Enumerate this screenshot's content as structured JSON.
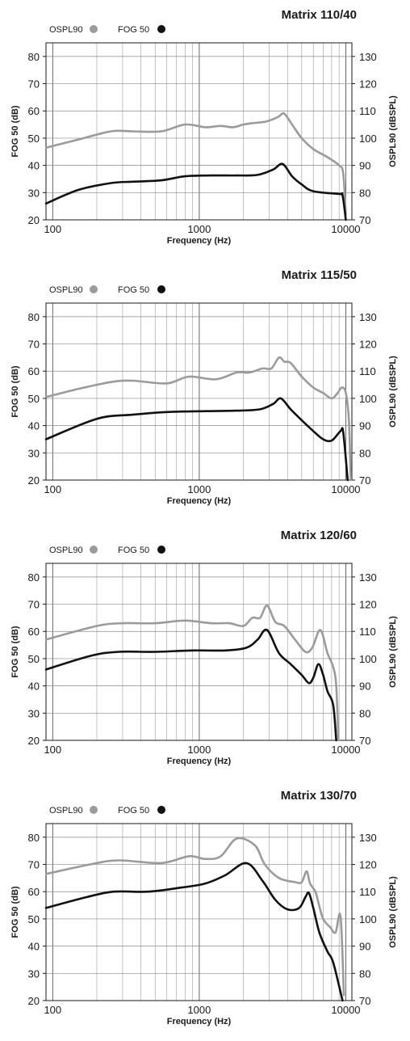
{
  "chart_data": [
    {
      "type": "line",
      "title": "Matrix 110/40",
      "xlabel": "Frequency (Hz)",
      "ylabel": "FOG 50 (dB)",
      "y2label": "OSPL90 (dBSPL)",
      "xscale": "log",
      "xlim": [
        90,
        11000
      ],
      "ylim": [
        20,
        85
      ],
      "y2lim": [
        70,
        135
      ],
      "xticks": [
        100,
        1000,
        10000
      ],
      "yticks": [
        20,
        30,
        40,
        50,
        60,
        70,
        80
      ],
      "y2ticks": [
        70,
        80,
        90,
        100,
        110,
        120,
        130
      ],
      "grid": true,
      "legend": [
        "OSPL90",
        "FOG 50"
      ],
      "colors": {
        "OSPL90": "#9b9b9b",
        "FOG 50": "#111111"
      },
      "series": [
        {
          "name": "OSPL90",
          "axis": "right",
          "points": [
            [
              90,
              96.5
            ],
            [
              150,
              99.5
            ],
            [
              250,
              102.5
            ],
            [
              350,
              102.5
            ],
            [
              550,
              102.5
            ],
            [
              800,
              105
            ],
            [
              1100,
              104
            ],
            [
              1400,
              104.5
            ],
            [
              1700,
              104
            ],
            [
              2000,
              105
            ],
            [
              2300,
              105.5
            ],
            [
              2800,
              106
            ],
            [
              3200,
              107
            ],
            [
              3500,
              108
            ],
            [
              3800,
              109
            ],
            [
              4300,
              105
            ],
            [
              5000,
              100
            ],
            [
              6000,
              96
            ],
            [
              7500,
              93
            ],
            [
              9000,
              90
            ],
            [
              9600,
              87
            ],
            [
              10000,
              72
            ]
          ]
        },
        {
          "name": "FOG 50",
          "axis": "left",
          "points": [
            [
              90,
              26
            ],
            [
              150,
              31
            ],
            [
              250,
              33.5
            ],
            [
              350,
              34
            ],
            [
              550,
              34.5
            ],
            [
              800,
              36
            ],
            [
              1200,
              36.3
            ],
            [
              1800,
              36.3
            ],
            [
              2500,
              36.5
            ],
            [
              3200,
              38.5
            ],
            [
              3700,
              40.5
            ],
            [
              4300,
              36
            ],
            [
              5000,
              33
            ],
            [
              6000,
              30.5
            ],
            [
              9000,
              29.5
            ],
            [
              9500,
              29
            ],
            [
              10000,
              20
            ]
          ]
        }
      ]
    },
    {
      "type": "line",
      "title": "Matrix 115/50",
      "xlabel": "Frequency (Hz)",
      "ylabel": "FOG 50 (dB)",
      "y2label": "OSPL90 (dBSPL)",
      "xscale": "log",
      "xlim": [
        90,
        11000
      ],
      "ylim": [
        20,
        85
      ],
      "y2lim": [
        70,
        135
      ],
      "xticks": [
        100,
        1000,
        10000
      ],
      "yticks": [
        20,
        30,
        40,
        50,
        60,
        70,
        80
      ],
      "y2ticks": [
        70,
        80,
        90,
        100,
        110,
        120,
        130
      ],
      "grid": true,
      "legend": [
        "OSPL90",
        "FOG 50"
      ],
      "colors": {
        "OSPL90": "#9b9b9b",
        "FOG 50": "#111111"
      },
      "series": [
        {
          "name": "OSPL90",
          "axis": "right",
          "points": [
            [
              90,
              100.5
            ],
            [
              150,
              103.5
            ],
            [
              250,
              106
            ],
            [
              350,
              106.5
            ],
            [
              600,
              105.5
            ],
            [
              850,
              108
            ],
            [
              1300,
              107
            ],
            [
              1800,
              109.5
            ],
            [
              2200,
              109.5
            ],
            [
              2700,
              111
            ],
            [
              3100,
              111
            ],
            [
              3500,
              115
            ],
            [
              3800,
              113.5
            ],
            [
              4200,
              113
            ],
            [
              5000,
              108
            ],
            [
              6000,
              104
            ],
            [
              7000,
              102
            ],
            [
              8000,
              100
            ],
            [
              8800,
              102
            ],
            [
              9400,
              104
            ],
            [
              10000,
              102
            ],
            [
              10500,
              92
            ],
            [
              10800,
              70
            ]
          ]
        },
        {
          "name": "FOG 50",
          "axis": "left",
          "points": [
            [
              90,
              35
            ],
            [
              200,
              42.5
            ],
            [
              350,
              44
            ],
            [
              600,
              45
            ],
            [
              1000,
              45.3
            ],
            [
              1800,
              45.5
            ],
            [
              2600,
              46
            ],
            [
              3200,
              48
            ],
            [
              3600,
              50
            ],
            [
              4200,
              46
            ],
            [
              5000,
              42
            ],
            [
              6000,
              38
            ],
            [
              7000,
              35
            ],
            [
              8000,
              34.5
            ],
            [
              9200,
              38
            ],
            [
              9600,
              37.5
            ],
            [
              10300,
              20
            ]
          ]
        }
      ]
    },
    {
      "type": "line",
      "title": "Matrix 120/60",
      "xlabel": "Frequency (Hz)",
      "ylabel": "FOG 50 (dB)",
      "y2label": "OSPL90 (dBSPL)",
      "xscale": "log",
      "xlim": [
        90,
        11000
      ],
      "ylim": [
        20,
        85
      ],
      "y2lim": [
        70,
        135
      ],
      "xticks": [
        100,
        1000,
        10000
      ],
      "yticks": [
        20,
        30,
        40,
        50,
        60,
        70,
        80
      ],
      "y2ticks": [
        70,
        80,
        90,
        100,
        110,
        120,
        130
      ],
      "grid": true,
      "legend": [
        "OSPL90",
        "FOG 50"
      ],
      "colors": {
        "OSPL90": "#9b9b9b",
        "FOG 50": "#111111"
      },
      "series": [
        {
          "name": "OSPL90",
          "axis": "right",
          "points": [
            [
              90,
              107
            ],
            [
              200,
              112
            ],
            [
              300,
              113
            ],
            [
              500,
              113
            ],
            [
              800,
              114
            ],
            [
              1200,
              113
            ],
            [
              1600,
              113
            ],
            [
              2000,
              112
            ],
            [
              2300,
              115
            ],
            [
              2600,
              115
            ],
            [
              2900,
              119.5
            ],
            [
              3300,
              113.5
            ],
            [
              3800,
              112
            ],
            [
              4500,
              107
            ],
            [
              5300,
              102.5
            ],
            [
              5900,
              104
            ],
            [
              6700,
              110.5
            ],
            [
              7500,
              102
            ],
            [
              8200,
              97
            ],
            [
              8600,
              90
            ],
            [
              8900,
              70
            ]
          ]
        },
        {
          "name": "FOG 50",
          "axis": "left",
          "points": [
            [
              90,
              46
            ],
            [
              180,
              51
            ],
            [
              280,
              52.5
            ],
            [
              500,
              52.5
            ],
            [
              900,
              53
            ],
            [
              1500,
              53
            ],
            [
              2100,
              54
            ],
            [
              2500,
              57
            ],
            [
              2900,
              60.5
            ],
            [
              3500,
              52
            ],
            [
              4200,
              48
            ],
            [
              5000,
              44
            ],
            [
              5600,
              41
            ],
            [
              6000,
              43
            ],
            [
              6500,
              48
            ],
            [
              7000,
              44
            ],
            [
              7500,
              38
            ],
            [
              8200,
              33
            ],
            [
              8600,
              20
            ]
          ]
        }
      ]
    },
    {
      "type": "line",
      "title": "Matrix 130/70",
      "xlabel": "Frequency (Hz)",
      "ylabel": "FOG 50 (dB)",
      "y2label": "OSPL90 (dBSPL)",
      "xscale": "log",
      "xlim": [
        90,
        11000
      ],
      "ylim": [
        20,
        85
      ],
      "y2lim": [
        70,
        135
      ],
      "xticks": [
        100,
        1000,
        10000
      ],
      "yticks": [
        20,
        30,
        40,
        50,
        60,
        70,
        80
      ],
      "y2ticks": [
        70,
        80,
        90,
        100,
        110,
        120,
        130
      ],
      "grid": true,
      "legend": [
        "OSPL90",
        "FOG 50"
      ],
      "colors": {
        "OSPL90": "#9b9b9b",
        "FOG 50": "#111111"
      },
      "series": [
        {
          "name": "OSPL90",
          "axis": "right",
          "points": [
            [
              90,
              116.5
            ],
            [
              180,
              120
            ],
            [
              280,
              121.5
            ],
            [
              550,
              120.5
            ],
            [
              850,
              123
            ],
            [
              1100,
              122
            ],
            [
              1400,
              123
            ],
            [
              1800,
              129.5
            ],
            [
              2400,
              127
            ],
            [
              2800,
              120
            ],
            [
              3500,
              115
            ],
            [
              4500,
              113.5
            ],
            [
              5000,
              113.5
            ],
            [
              5400,
              117.5
            ],
            [
              5700,
              113
            ],
            [
              6200,
              110
            ],
            [
              6500,
              106
            ],
            [
              7000,
              100
            ],
            [
              7800,
              97
            ],
            [
              8500,
              95
            ],
            [
              9200,
              101
            ],
            [
              9700,
              72
            ]
          ]
        },
        {
          "name": "FOG 50",
          "axis": "left",
          "points": [
            [
              90,
              54
            ],
            [
              170,
              58
            ],
            [
              260,
              60
            ],
            [
              450,
              60
            ],
            [
              750,
              61.5
            ],
            [
              1100,
              63
            ],
            [
              1500,
              66
            ],
            [
              2100,
              70.5
            ],
            [
              2700,
              64
            ],
            [
              3300,
              57
            ],
            [
              4000,
              53.5
            ],
            [
              4800,
              54
            ],
            [
              5300,
              58
            ],
            [
              5600,
              59.5
            ],
            [
              6000,
              54
            ],
            [
              6600,
              45
            ],
            [
              7500,
              38
            ],
            [
              8200,
              34
            ],
            [
              9500,
              20
            ]
          ]
        }
      ]
    }
  ]
}
